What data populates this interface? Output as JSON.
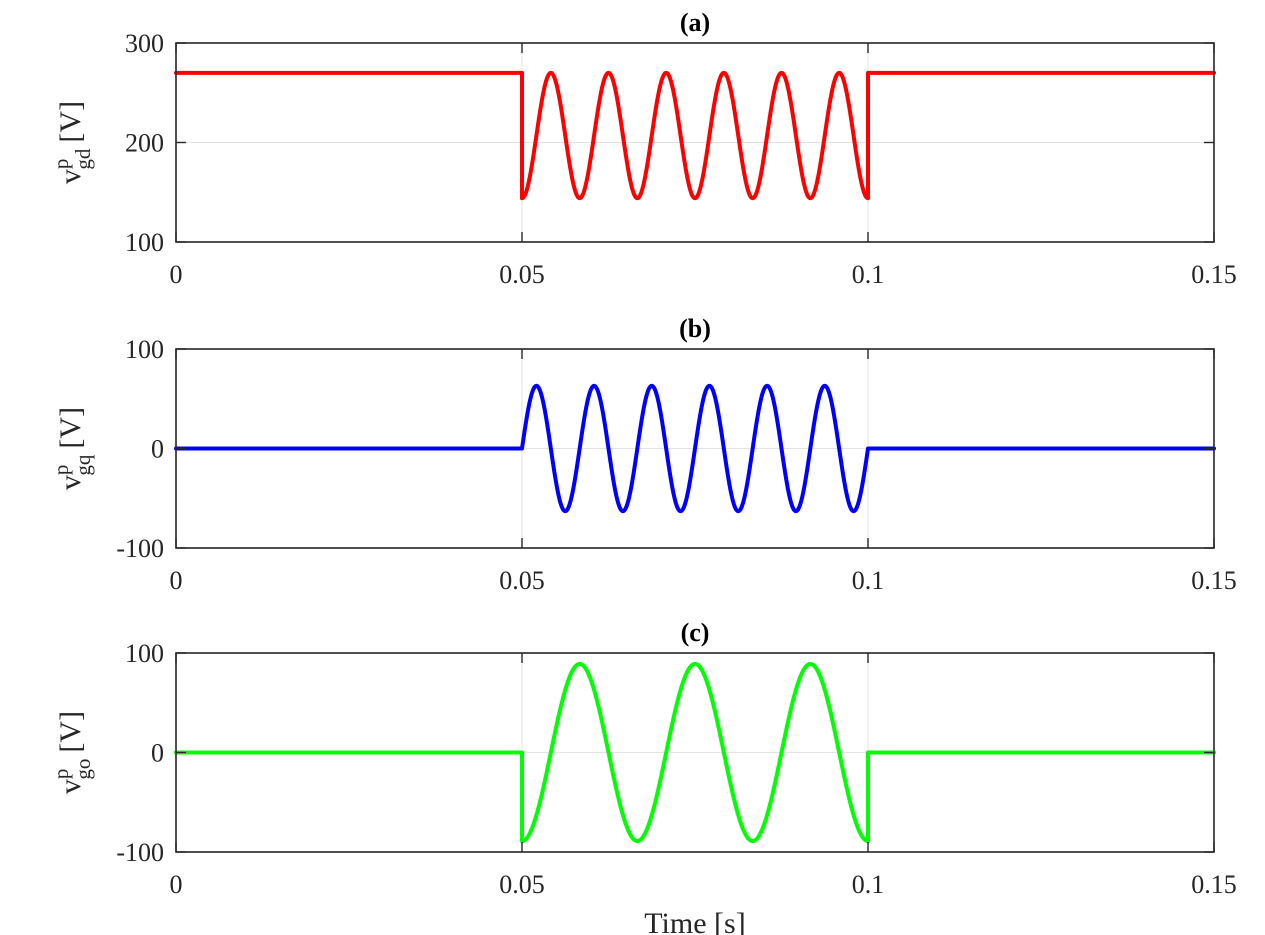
{
  "chart_data": [
    {
      "type": "line",
      "title": "(a)",
      "ylabel": {
        "base": "v",
        "sup": "p",
        "sub": "gd",
        "unit": "[V]"
      },
      "xlabel": "",
      "xlim": [
        0,
        0.15
      ],
      "ylim": [
        100,
        300
      ],
      "xticks": [
        0,
        0.05,
        0.1,
        0.15
      ],
      "xtick_labels": [
        "0",
        "0.05",
        "0.1",
        "0.15"
      ],
      "yticks": [
        100,
        200,
        300
      ],
      "ytick_labels": [
        "100",
        "200",
        "300"
      ],
      "grid": true,
      "series": [
        {
          "color": "#ff0000",
          "segments": [
            {
              "kind": "constant",
              "x": [
                0,
                0.05
              ],
              "value": 270
            },
            {
              "kind": "sine",
              "x": [
                0.05,
                0.1
              ],
              "offset": 207,
              "amplitude": 63,
              "frequency": 120,
              "phase_deg": 270
            },
            {
              "kind": "constant",
              "x": [
                0.1,
                0.15
              ],
              "value": 270
            }
          ]
        }
      ]
    },
    {
      "type": "line",
      "title": "(b)",
      "ylabel": {
        "base": "v",
        "sup": "p",
        "sub": "gq",
        "unit": "[V]"
      },
      "xlabel": "",
      "xlim": [
        0,
        0.15
      ],
      "ylim": [
        -100,
        100
      ],
      "xticks": [
        0,
        0.05,
        0.1,
        0.15
      ],
      "xtick_labels": [
        "0",
        "0.05",
        "0.1",
        "0.15"
      ],
      "yticks": [
        -100,
        0,
        100
      ],
      "ytick_labels": [
        "-100",
        "0",
        "100"
      ],
      "grid": true,
      "series": [
        {
          "color": "#0000ff",
          "segments": [
            {
              "kind": "constant",
              "x": [
                0,
                0.05
              ],
              "value": 0
            },
            {
              "kind": "sine",
              "x": [
                0.05,
                0.1
              ],
              "offset": 0,
              "amplitude": 63,
              "frequency": 120,
              "phase_deg": 0
            },
            {
              "kind": "constant",
              "x": [
                0.1,
                0.15
              ],
              "value": 0
            }
          ]
        }
      ]
    },
    {
      "type": "line",
      "title": "(c)",
      "ylabel": {
        "base": "v",
        "sup": "p",
        "sub": "go",
        "unit": "[V]"
      },
      "xlabel": "Time [s]",
      "xlim": [
        0,
        0.15
      ],
      "ylim": [
        -100,
        100
      ],
      "xticks": [
        0,
        0.05,
        0.1,
        0.15
      ],
      "xtick_labels": [
        "0",
        "0.05",
        "0.1",
        "0.15"
      ],
      "yticks": [
        -100,
        0,
        100
      ],
      "ytick_labels": [
        "-100",
        "0",
        "100"
      ],
      "grid": true,
      "series": [
        {
          "color": "#00ff00",
          "segments": [
            {
              "kind": "constant",
              "x": [
                0,
                0.05
              ],
              "value": 0
            },
            {
              "kind": "sine",
              "x": [
                0.05,
                0.1
              ],
              "offset": 0,
              "amplitude": 89,
              "frequency": 60,
              "phase_deg": 270
            },
            {
              "kind": "constant",
              "x": [
                0.1,
                0.15
              ],
              "value": 0
            }
          ]
        }
      ]
    }
  ]
}
